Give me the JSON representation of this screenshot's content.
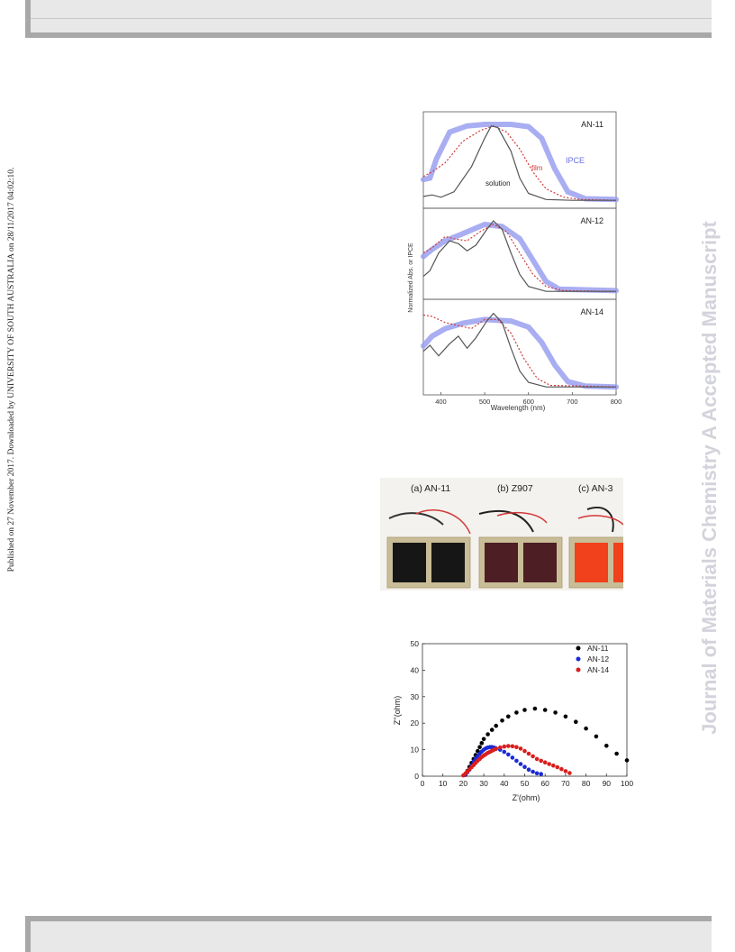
{
  "sidebar_left": "Published on 27 November 2017. Downloaded by UNIVERSITY OF SOUTH AUSTRALIA on 28/11/2017 04:02:10.",
  "watermark": "Journal of Materials Chemistry A Accepted Manuscript",
  "colors": {
    "ipce": "#9aa0f0",
    "film": "#d23a3a",
    "solution": "#555555",
    "an11": "#000000",
    "an12": "#1a2ad6",
    "an14": "#d81e1e"
  },
  "spectra": {
    "ylabel": "Normalized Abs. or IPCE",
    "xlabel": "Wavelength (nm)",
    "xlim": [
      360,
      800
    ],
    "xticks": [
      "400",
      "500",
      "600",
      "700",
      "800"
    ],
    "labels": {
      "ipce": "IPCE",
      "film": "film",
      "solution": "solution"
    },
    "panels": [
      {
        "name": "AN-11"
      },
      {
        "name": "AN-12"
      },
      {
        "name": "AN-14"
      }
    ]
  },
  "photo": {
    "captions": [
      "(a) AN-11",
      "(b) Z907",
      "(c) AN-3"
    ],
    "cell_colors": [
      "#161616",
      "#4d1e24",
      "#f1401c"
    ]
  },
  "chart_data": {
    "type": "scatter",
    "xlabel": "Z'(ohm)",
    "ylabel": "Z''(ohm)",
    "xlim": [
      0,
      100
    ],
    "ylim": [
      0,
      50
    ],
    "xticks": [
      "0",
      "10",
      "20",
      "30",
      "40",
      "50",
      "60",
      "70",
      "80",
      "90",
      "100"
    ],
    "yticks": [
      "0",
      "10",
      "20",
      "30",
      "40",
      "50"
    ],
    "legend_position": "top-right",
    "series": [
      {
        "name": "AN-11",
        "color": "#000000",
        "x": [
          21,
          22,
          23,
          24,
          25,
          26,
          27,
          28,
          29,
          30,
          32,
          34,
          36,
          39,
          42,
          46,
          50,
          55,
          60,
          65,
          70,
          75,
          80,
          85,
          90,
          95,
          100
        ],
        "y": [
          0.5,
          2,
          3.5,
          5,
          6.5,
          8,
          9.5,
          11,
          12.5,
          14,
          15.8,
          17.5,
          19,
          21,
          22.5,
          24,
          25,
          25.5,
          25,
          24,
          22.5,
          20.5,
          18,
          15,
          11.5,
          8.5,
          6
        ]
      },
      {
        "name": "AN-12",
        "color": "#1a2ad6",
        "x": [
          21,
          22,
          23,
          24,
          25,
          26,
          27,
          28,
          29,
          30,
          31,
          32,
          33,
          34,
          35,
          36,
          38,
          40,
          42,
          44,
          46,
          48,
          50,
          52,
          54,
          56,
          58
        ],
        "y": [
          0.5,
          1.5,
          2.5,
          4,
          5.5,
          6.5,
          7.5,
          8.5,
          9.3,
          10,
          10.5,
          10.8,
          11,
          11,
          10.8,
          10.5,
          10,
          9.2,
          8.2,
          7,
          5.8,
          4.6,
          3.5,
          2.5,
          1.7,
          1.1,
          0.8
        ]
      },
      {
        "name": "AN-14",
        "color": "#d81e1e",
        "x": [
          20,
          21,
          22,
          23,
          24,
          25,
          26,
          27,
          28,
          29,
          30,
          31,
          32,
          33,
          34,
          35,
          36,
          38,
          40,
          42,
          44,
          46,
          48,
          50,
          52,
          54,
          56,
          58,
          60,
          62,
          64,
          66,
          68,
          70,
          72
        ],
        "y": [
          0.3,
          1,
          1.8,
          2.6,
          3.4,
          4.2,
          5,
          5.8,
          6.5,
          7.2,
          7.8,
          8.3,
          8.8,
          9.2,
          9.6,
          10,
          10.3,
          10.8,
          11.2,
          11.4,
          11.3,
          11,
          10.4,
          9.5,
          8.5,
          7.5,
          6.5,
          5.8,
          5.2,
          4.6,
          4.0,
          3.4,
          2.7,
          1.9,
          1.2
        ]
      }
    ]
  }
}
